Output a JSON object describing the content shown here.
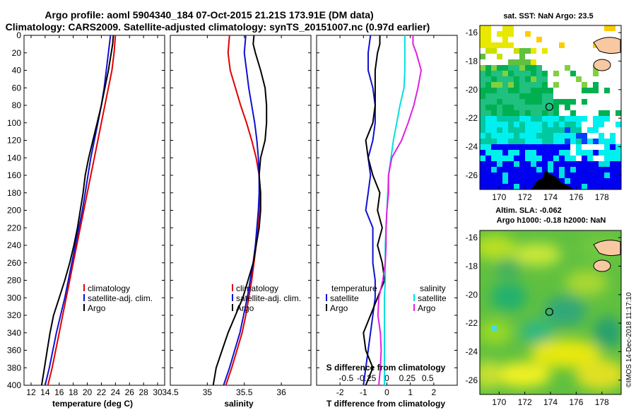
{
  "title": {
    "line1": "Argo profile: aoml 5904340_184 07-Oct-2015 21.21S 173.91E (DM data)",
    "line2": "Climatology: CARS2009. Satellite-adjusted climatology: synTS_20151007.nc (0.97d earlier)"
  },
  "colors": {
    "climatology": "#e00000",
    "satellite": "#1010d0",
    "argo": "#000000",
    "sat_salinity": "#00e0e0",
    "argo_salinity_diff": "#e020e0"
  },
  "chart_data": [
    {
      "type": "line",
      "name": "temperature",
      "xlabel": "temperature (deg C)",
      "ylabel": "",
      "xlim": [
        11,
        31
      ],
      "ylim": [
        400,
        0
      ],
      "xticks": [
        12,
        14,
        16,
        18,
        20,
        22,
        24,
        26,
        28,
        30
      ],
      "yticks": [
        0,
        20,
        40,
        60,
        80,
        100,
        120,
        140,
        160,
        180,
        200,
        220,
        240,
        260,
        280,
        300,
        320,
        340,
        360,
        380,
        400
      ],
      "legend": [
        "climatology",
        "satellite-adj. clim.",
        "Argo"
      ],
      "series": [
        {
          "name": "climatology",
          "color": "#e00000",
          "depth": [
            0,
            20,
            40,
            60,
            80,
            100,
            120,
            140,
            160,
            180,
            200,
            220,
            240,
            260,
            280,
            300,
            320,
            340,
            360,
            380,
            400
          ],
          "values": [
            24.0,
            23.8,
            23.5,
            23.0,
            22.5,
            22.0,
            21.5,
            21.0,
            20.5,
            20.0,
            19.5,
            19.0,
            18.5,
            18.0,
            17.5,
            17.0,
            16.5,
            16.0,
            15.5,
            15.0,
            14.4
          ]
        },
        {
          "name": "satellite-adj. clim.",
          "color": "#1010d0",
          "depth": [
            0,
            20,
            40,
            60,
            80,
            100,
            120,
            140,
            160,
            180,
            200,
            220,
            240,
            260,
            280,
            300,
            320,
            340,
            360,
            380,
            400
          ],
          "values": [
            23.3,
            23.0,
            22.7,
            22.4,
            22.0,
            21.5,
            21.0,
            20.5,
            20.1,
            19.7,
            19.3,
            18.8,
            18.3,
            17.8,
            17.3,
            16.8,
            16.2,
            15.6,
            15.1,
            14.6,
            14.0
          ]
        },
        {
          "name": "Argo",
          "color": "#000000",
          "depth": [
            0,
            10,
            20,
            40,
            60,
            80,
            100,
            120,
            140,
            160,
            180,
            200,
            220,
            240,
            260,
            280,
            300,
            320,
            340,
            360,
            380,
            400
          ],
          "values": [
            23.7,
            23.6,
            23.4,
            23.0,
            22.5,
            22.0,
            21.4,
            20.8,
            20.2,
            19.7,
            19.4,
            19.0,
            18.6,
            18.1,
            17.5,
            16.8,
            16.0,
            15.2,
            14.7,
            14.3,
            13.9,
            13.5
          ]
        }
      ]
    },
    {
      "type": "line",
      "name": "salinity",
      "xlabel": "salinity",
      "xlim": [
        34.5,
        36.4
      ],
      "ylim": [
        400,
        0
      ],
      "xticks": [
        34.5,
        35,
        35.5,
        36
      ],
      "legend": [
        "climatology",
        "satellite-adj. clim.",
        "Argo"
      ],
      "series": [
        {
          "name": "climatology",
          "color": "#e00000",
          "depth": [
            0,
            20,
            40,
            60,
            80,
            100,
            120,
            140,
            160,
            180,
            200,
            220,
            240,
            260,
            280,
            300,
            320,
            340,
            360,
            380,
            400
          ],
          "values": [
            35.3,
            35.28,
            35.31,
            35.38,
            35.45,
            35.53,
            35.6,
            35.66,
            35.7,
            35.71,
            35.7,
            35.68,
            35.66,
            35.63,
            35.6,
            35.56,
            35.52,
            35.47,
            35.4,
            35.33,
            35.25
          ]
        },
        {
          "name": "satellite-adj. clim.",
          "color": "#1010d0",
          "depth": [
            0,
            20,
            40,
            60,
            80,
            100,
            120,
            140,
            160,
            180,
            200,
            220,
            240,
            260,
            280,
            300,
            320,
            340,
            360,
            380,
            400
          ],
          "values": [
            35.52,
            35.5,
            35.53,
            35.56,
            35.6,
            35.64,
            35.67,
            35.69,
            35.7,
            35.7,
            35.69,
            35.67,
            35.65,
            35.62,
            35.58,
            35.54,
            35.49,
            35.44,
            35.37,
            35.3,
            35.22
          ]
        },
        {
          "name": "Argo",
          "color": "#000000",
          "depth": [
            0,
            10,
            20,
            40,
            60,
            80,
            100,
            120,
            140,
            160,
            180,
            200,
            220,
            240,
            260,
            280,
            300,
            320,
            340,
            360,
            380,
            400
          ],
          "values": [
            35.63,
            35.62,
            35.65,
            35.72,
            35.78,
            35.8,
            35.8,
            35.78,
            35.72,
            35.7,
            35.72,
            35.72,
            35.7,
            35.66,
            35.62,
            35.55,
            35.48,
            35.38,
            35.28,
            35.2,
            35.12,
            35.08
          ]
        }
      ]
    },
    {
      "type": "line",
      "name": "differences",
      "xlabel": "T difference from climatology",
      "xlabel2": "S difference from climatology",
      "xlim": [
        -3,
        3
      ],
      "ylim": [
        400,
        0
      ],
      "xticks": [
        -2,
        -1,
        0,
        1,
        2
      ],
      "xticks2": [
        -0.5,
        -0.25,
        0,
        0.25,
        0.5
      ],
      "legend_temperature_title": "temperature",
      "legend_salinity_title": "salinity",
      "legend_entries": [
        "satellite",
        "Argo"
      ],
      "series": [
        {
          "name": "temperature satellite",
          "color": "#1010d0",
          "depth": [
            0,
            20,
            40,
            60,
            80,
            100,
            120,
            140,
            160,
            180,
            200,
            220,
            240,
            260,
            280,
            300,
            320,
            340,
            360,
            380,
            400
          ],
          "values": [
            -0.7,
            -0.8,
            -0.8,
            -0.6,
            -0.5,
            -0.5,
            -0.6,
            -0.8,
            -0.7,
            -0.8,
            -0.9,
            -0.6,
            -0.6,
            -0.6,
            -0.5,
            -0.5,
            -0.6,
            -0.7,
            -0.8,
            -0.9,
            -1.0
          ]
        },
        {
          "name": "temperature Argo",
          "color": "#000000",
          "depth": [
            0,
            10,
            20,
            40,
            60,
            80,
            100,
            120,
            140,
            160,
            180,
            200,
            220,
            240,
            260,
            280,
            300,
            320,
            340,
            360,
            380,
            400
          ],
          "values": [
            -0.3,
            -0.3,
            -0.4,
            -0.5,
            -0.5,
            -0.5,
            -0.6,
            -0.9,
            -0.8,
            -0.6,
            -0.3,
            -0.4,
            -0.2,
            -0.4,
            -0.2,
            -0.1,
            -0.4,
            -0.7,
            -1.0,
            -0.9,
            -0.6,
            -0.9
          ]
        },
        {
          "name": "salinity satellite",
          "color": "#00e0e0",
          "depth": [
            0,
            20,
            40,
            60,
            80,
            100,
            120,
            140,
            160,
            180,
            200,
            220,
            240,
            260,
            280,
            300,
            320,
            340,
            360,
            380,
            400
          ],
          "values": [
            0.22,
            0.22,
            0.22,
            0.21,
            0.16,
            0.12,
            0.08,
            0.05,
            0.02,
            0.01,
            0.0,
            -0.01,
            -0.02,
            -0.02,
            -0.02,
            -0.03,
            -0.03,
            -0.03,
            -0.03,
            -0.03,
            -0.03
          ]
        },
        {
          "name": "salinity Argo",
          "color": "#e020e0",
          "depth": [
            0,
            10,
            20,
            40,
            60,
            80,
            100,
            120,
            140,
            160,
            180,
            200,
            220,
            240,
            260,
            280,
            300,
            320,
            340,
            360,
            380,
            400
          ],
          "values": [
            0.32,
            0.32,
            0.36,
            0.42,
            0.38,
            0.33,
            0.26,
            0.18,
            0.06,
            0.02,
            0.02,
            0.0,
            -0.01,
            -0.01,
            -0.02,
            -0.05,
            -0.1,
            -0.11,
            -0.08,
            -0.07,
            -0.08,
            -0.1
          ]
        }
      ]
    },
    {
      "type": "heatmap",
      "name": "sst map",
      "title": "sat. SST: NaN Argo: 23.5",
      "xticks": [
        170,
        172,
        174,
        176,
        178
      ],
      "yticks": [
        -16,
        -18,
        -20,
        -22,
        -24,
        -26
      ],
      "xlim": [
        168.5,
        179.5
      ],
      "ylim": [
        -27,
        -15.5
      ],
      "argo_position": [
        173.91,
        -21.21
      ]
    },
    {
      "type": "heatmap",
      "name": "sla map",
      "title": "Altim. SLA: -0.062",
      "title2": "Argo h1000: -0.18 h2000: NaN",
      "xticks": [
        170,
        172,
        174,
        176,
        178
      ],
      "yticks": [
        -16,
        -18,
        -20,
        -22,
        -24,
        -26
      ],
      "xlim": [
        168.5,
        179.5
      ],
      "ylim": [
        -27,
        -15.5
      ],
      "argo_position": [
        173.91,
        -21.21
      ]
    }
  ],
  "credit": "©IMOS 14-Dec-2018 11:17:10"
}
